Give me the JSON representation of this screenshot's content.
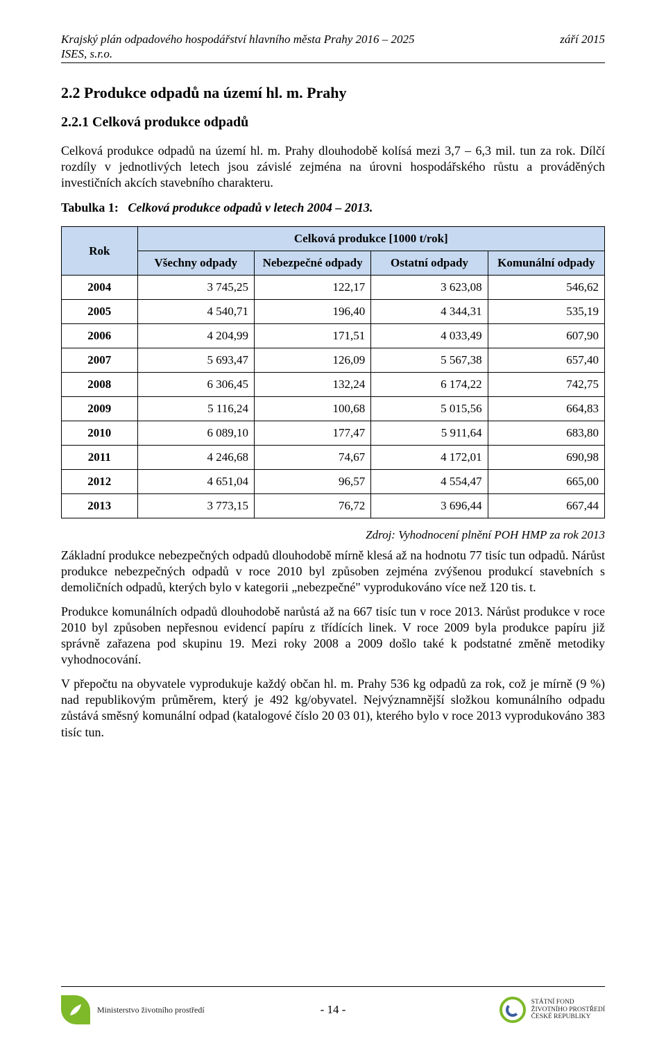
{
  "header": {
    "title_left": "Krajský plán odpadového hospodářství hlavního města Prahy 2016 – 2025",
    "title_right": "září 2015",
    "org": "ISES, s.r.o."
  },
  "sections": {
    "h2": "2.2  Produkce odpadů na území hl. m. Prahy",
    "h3": "2.2.1  Celková produkce odpadů",
    "para1": "Celková produkce odpadů na území hl. m. Prahy dlouhodobě kolísá mezi 3,7 – 6,3 mil. tun za rok. Dílčí rozdíly v jednotlivých letech jsou závislé zejména na úrovni hospodářského růstu a prováděných investičních akcích stavebního charakteru.",
    "table_caption_label": "Tabulka 1:",
    "table_caption_text": "Celková produkce odpadů v letech 2004 – 2013.",
    "source": "Zdroj: Vyhodnocení plnění POH HMP za rok 2013",
    "para2": "Základní produkce nebezpečných odpadů dlouhodobě mírně klesá až na hodnotu 77 tisíc tun odpadů. Nárůst produkce nebezpečných odpadů v roce 2010 byl způsoben zejména zvýšenou produkcí stavebních s demoličních odpadů, kterých bylo v kategorii „nebezpečné\" vyprodukováno více než 120 tis. t.",
    "para3": "Produkce komunálních odpadů dlouhodobě narůstá až na 667 tisíc tun v roce 2013. Nárůst produkce v roce 2010 byl způsoben nepřesnou evidencí papíru z třídících linek. V roce 2009 byla produkce papíru již správně zařazena pod skupinu 19. Mezi roky 2008 a 2009 došlo také k podstatné změně metodiky vyhodnocování.",
    "para4": "V přepočtu na obyvatele vyprodukuje každý občan hl. m. Prahy 536 kg odpadů za rok, což je mírně (9 %) nad republikovým průměrem, který je 492 kg/obyvatel. Nejvýznamnější složkou komunálního odpadu zůstává směsný komunální odpad (katalogové číslo 20 03 01), kterého bylo v roce 2013 vyprodukováno 383 tisíc tun."
  },
  "table": {
    "type": "table",
    "header_bg": "#c6d9f0",
    "border_color": "#000000",
    "top_header": "Celková produkce [1000 t/rok]",
    "columns": [
      "Rok",
      "Všechny odpady",
      "Nebezpečné odpady",
      "Ostatní odpady",
      "Komunální odpady"
    ],
    "col_widths_pct": [
      14,
      21.5,
      21.5,
      21.5,
      21.5
    ],
    "rows": [
      [
        "2004",
        "3 745,25",
        "122,17",
        "3 623,08",
        "546,62"
      ],
      [
        "2005",
        "4 540,71",
        "196,40",
        "4 344,31",
        "535,19"
      ],
      [
        "2006",
        "4 204,99",
        "171,51",
        "4 033,49",
        "607,90"
      ],
      [
        "2007",
        "5 693,47",
        "126,09",
        "5 567,38",
        "657,40"
      ],
      [
        "2008",
        "6 306,45",
        "132,24",
        "6 174,22",
        "742,75"
      ],
      [
        "2009",
        "5 116,24",
        "100,68",
        "5 015,56",
        "664,83"
      ],
      [
        "2010",
        "6 089,10",
        "177,47",
        "5 911,64",
        "683,80"
      ],
      [
        "2011",
        "4 246,68",
        "74,67",
        "4 172,01",
        "690,98"
      ],
      [
        "2012",
        "4 651,04",
        "96,57",
        "4 554,47",
        "665,00"
      ],
      [
        "2013",
        "3 773,15",
        "76,72",
        "3 696,44",
        "667,44"
      ]
    ]
  },
  "footer": {
    "page_number": "- 14 -",
    "mzp_line1": "Ministerstvo životního prostředí",
    "sfzp_line1": "STÁTNÍ FOND",
    "sfzp_line2": "ŽIVOTNÍHO PROSTŘEDÍ",
    "sfzp_line3": "ČESKÉ REPUBLIKY"
  },
  "colors": {
    "table_header_bg": "#c6d9f0",
    "mzp_green": "#7db928",
    "sfzp_blue": "#3b5ca0"
  }
}
